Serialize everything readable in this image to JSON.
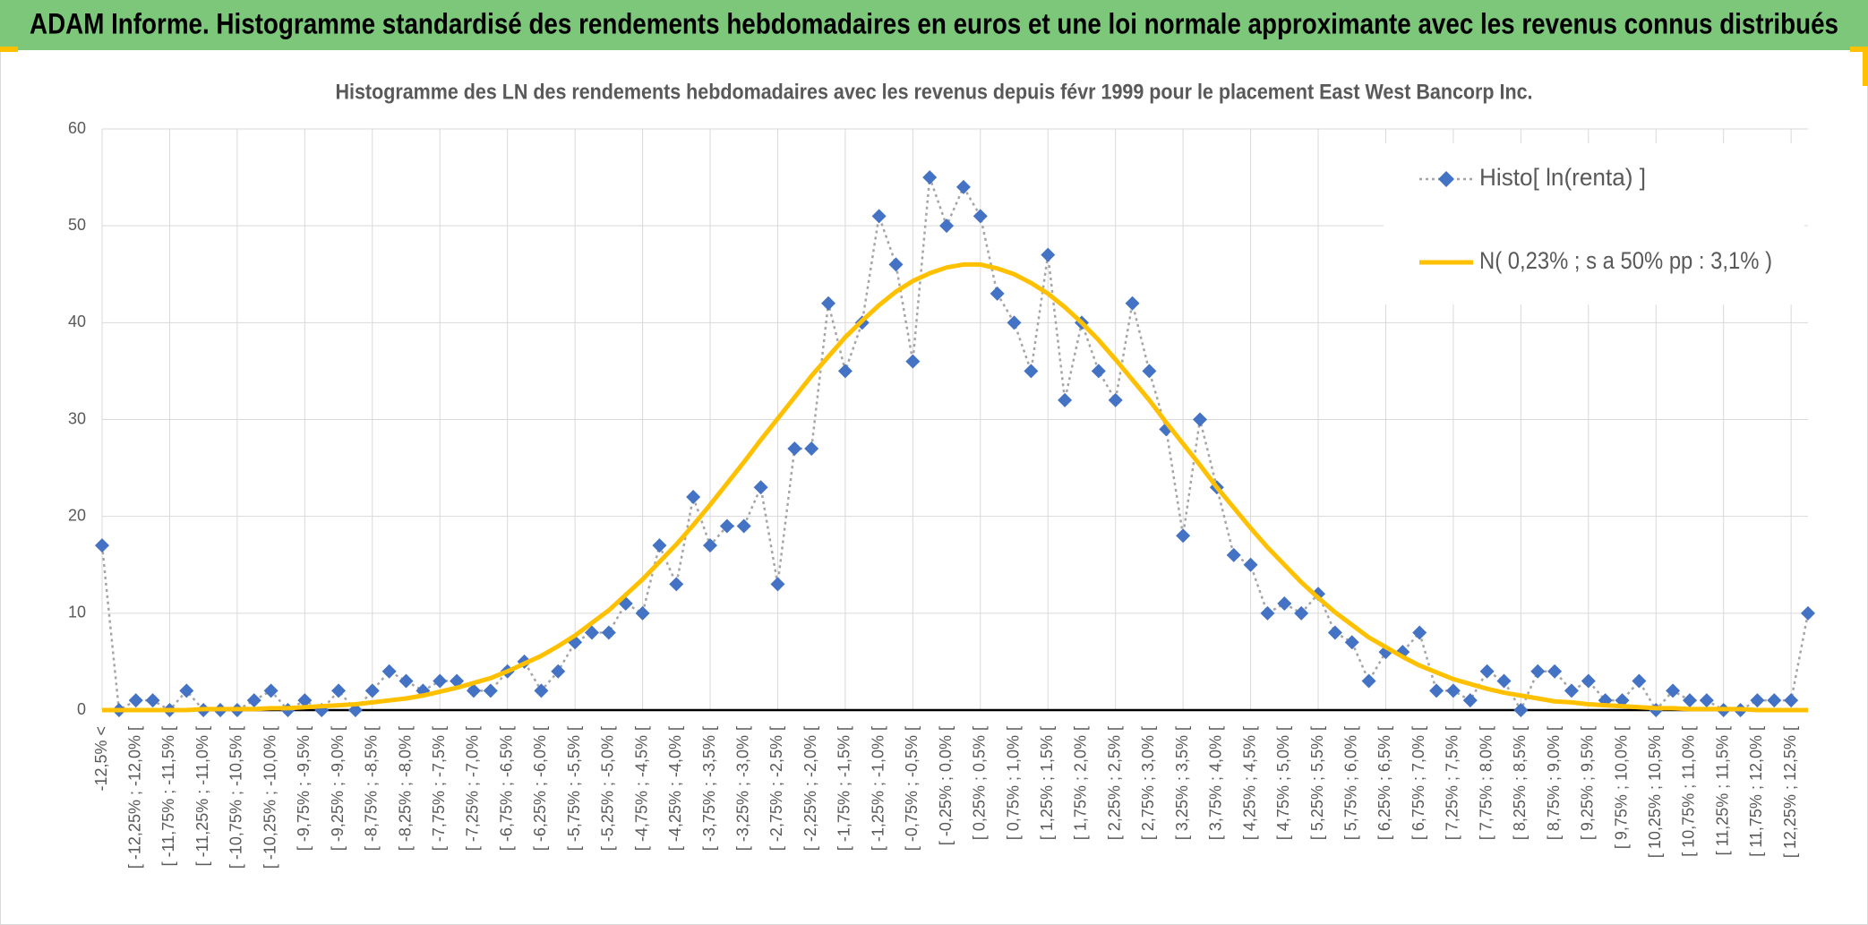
{
  "page_title": "ADAM Informe. Histogramme standardisé des rendements hebdomadaires en euros et une loi normale approximante avec les revenus connus distribués",
  "chart_data": {
    "type": "line",
    "title": "Histogramme des LN des rendements hebdomadaires avec les revenus depuis févr 1999 pour le placement East West Bancorp Inc.",
    "categories": [
      "-12,5% <",
      null,
      "[ -12,25% ; -12,0% [",
      null,
      "[ -11,75% ; -11,5% [",
      null,
      "[ -11,25% ; -11,0% [",
      null,
      "[ -10,75% ; -10,5% [",
      null,
      "[ -10,25% ; -10,0% [",
      null,
      "[ -9,75% ; -9,5% [",
      null,
      "[ -9,25% ; -9,0% [",
      null,
      "[ -8,75% ; -8,5% [",
      null,
      "[ -8,25% ; -8,0% [",
      null,
      "[ -7,75% ; -7,5% [",
      null,
      "[ -7,25% ; -7,0% [",
      null,
      "[ -6,75% ; -6,5% [",
      null,
      "[ -6,25% ; -6,0% [",
      null,
      "[ -5,75% ; -5,5% [",
      null,
      "[ -5,25% ; -5,0% [",
      null,
      "[ -4,75% ; -4,5% [",
      null,
      "[ -4,25% ; -4,0% [",
      null,
      "[ -3,75% ; -3,5% [",
      null,
      "[ -3,25% ; -3,0% [",
      null,
      "[ -2,75% ; -2,5% [",
      null,
      "[ -2,25% ; -2,0% [",
      null,
      "[ -1,75% ; -1,5% [",
      null,
      "[ -1,25% ; -1,0% [",
      null,
      "[ -0,75% ; -0,5% [",
      null,
      "[ -0,25% ; 0,0% [",
      null,
      "[ 0,25% ; 0,5% [",
      null,
      "[ 0,75% ; 1,0% [",
      null,
      "[ 1,25% ; 1,5% [",
      null,
      "[ 1,75% ; 2,0% [",
      null,
      "[ 2,25% ; 2,5% [",
      null,
      "[ 2,75% ; 3,0% [",
      null,
      "[ 3,25% ; 3,5% [",
      null,
      "[ 3,75% ; 4,0% [",
      null,
      "[ 4,25% ; 4,5% [",
      null,
      "[ 4,75% ; 5,0% [",
      null,
      "[ 5,25% ; 5,5% [",
      null,
      "[ 5,75% ; 6,0% [",
      null,
      "[ 6,25% ; 6,5% [",
      null,
      "[ 6,75% ; 7,0% [",
      null,
      "[ 7,25% ; 7,5% [",
      null,
      "[ 7,75% ; 8,0% [",
      null,
      "[ 8,25% ; 8,5% [",
      null,
      "[ 8,75% ; 9,0% [",
      null,
      "[ 9,25% ; 9,5% [",
      null,
      "[ 9,75% ; 10,0% [",
      null,
      "[ 10,25% ; 10,5% [",
      null,
      "[ 10,75% ; 11,0% [",
      null,
      "[ 11,25% ; 11,5% [",
      null,
      "[ 11,75% ; 12,0% [",
      null,
      "[ 12,25% ; 12,5% [",
      null
    ],
    "series": [
      {
        "name": "Histo[ ln(renta) ]",
        "color": "#4472c4",
        "line_color": "#a5a5a5",
        "marker": "diamond",
        "line_style": "dotted",
        "values": [
          17,
          0,
          1,
          1,
          0,
          2,
          0,
          0,
          0,
          1,
          2,
          0,
          1,
          0,
          2,
          0,
          2,
          4,
          3,
          2,
          3,
          3,
          2,
          2,
          4,
          5,
          2,
          4,
          7,
          8,
          8,
          11,
          10,
          17,
          13,
          22,
          17,
          19,
          19,
          23,
          13,
          27,
          27,
          42,
          35,
          40,
          51,
          46,
          36,
          55,
          50,
          54,
          51,
          43,
          40,
          35,
          47,
          32,
          40,
          35,
          32,
          42,
          35,
          29,
          18,
          30,
          23,
          16,
          15,
          10,
          11,
          10,
          12,
          8,
          7,
          3,
          6,
          6,
          8,
          2,
          2,
          1,
          4,
          3,
          0,
          4,
          4,
          2,
          3,
          1,
          1,
          3,
          0,
          2,
          1,
          1,
          0,
          0,
          1,
          1,
          1,
          10
        ]
      },
      {
        "name": "N( 0,23% ; s a 50% pp : 3,1% )",
        "color": "#ffc000",
        "marker": "none",
        "line_style": "solid",
        "values": [
          0,
          0,
          0,
          0,
          0,
          0,
          0.1,
          0.1,
          0.1,
          0.1,
          0.2,
          0.2,
          0.3,
          0.4,
          0.5,
          0.6,
          0.8,
          1.0,
          1.2,
          1.5,
          1.9,
          2.3,
          2.8,
          3.3,
          4.0,
          4.8,
          5.6,
          6.6,
          7.7,
          9.0,
          10.3,
          11.9,
          13.5,
          15.3,
          17.1,
          19.1,
          21.2,
          23.4,
          25.6,
          27.9,
          30.1,
          32.3,
          34.5,
          36.5,
          38.5,
          40.2,
          41.8,
          43.2,
          44.3,
          45.1,
          45.7,
          46.0,
          46.0,
          45.6,
          45.0,
          44.1,
          43.0,
          41.6,
          40.0,
          38.2,
          36.2,
          34.1,
          32.0,
          29.7,
          27.5,
          25.3,
          23.0,
          20.9,
          18.8,
          16.8,
          15.0,
          13.2,
          11.6,
          10.1,
          8.8,
          7.5,
          6.5,
          5.5,
          4.6,
          3.9,
          3.2,
          2.7,
          2.2,
          1.8,
          1.5,
          1.2,
          0.9,
          0.8,
          0.6,
          0.5,
          0.4,
          0.3,
          0.2,
          0.2,
          0.1,
          0.1,
          0.1,
          0.1,
          0,
          0,
          0,
          0
        ]
      }
    ],
    "ylim": [
      0,
      60
    ],
    "yticks": [
      0,
      10,
      20,
      30,
      40,
      50,
      60
    ],
    "grid": true,
    "legend": "top-right"
  }
}
